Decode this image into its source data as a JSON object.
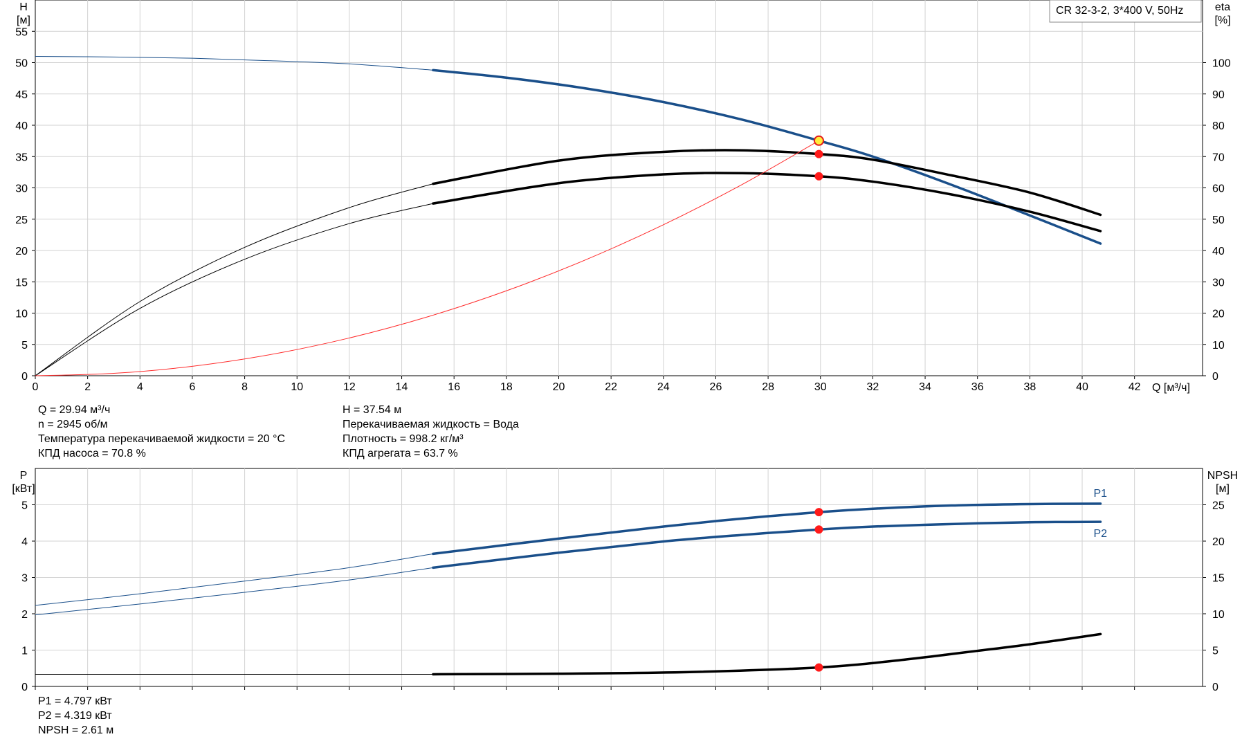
{
  "chart_data": [
    {
      "type": "line",
      "title": "CR 32-3-2, 3*400 V, 50Hz",
      "xlabel": "Q [м³/ч]",
      "ylabel_left": [
        "H",
        "[м]"
      ],
      "ylabel_right": [
        "eta",
        "[%]"
      ],
      "xlim": [
        0,
        44.6
      ],
      "ylim_left": [
        0,
        60
      ],
      "ylim_right": [
        0,
        120
      ],
      "x_ticks": [
        0,
        2,
        4,
        6,
        8,
        10,
        12,
        14,
        16,
        18,
        20,
        22,
        24,
        26,
        28,
        30,
        32,
        34,
        36,
        38,
        40,
        42
      ],
      "y_ticks_left": [
        0,
        5,
        10,
        15,
        20,
        25,
        30,
        35,
        40,
        45,
        50,
        55
      ],
      "y_ticks_right": [
        0,
        10,
        20,
        30,
        40,
        50,
        60,
        70,
        80,
        90,
        100
      ],
      "grid": true,
      "operating_q": 29.94,
      "series": [
        {
          "axis": "left",
          "color": "#1a4f8a",
          "x": [
            0,
            3,
            6,
            9,
            12,
            15.2,
            18,
            21,
            24,
            27,
            29.94,
            32,
            35,
            38,
            40.7
          ],
          "y": [
            51.0,
            50.9,
            50.7,
            50.3,
            49.8,
            48.8,
            47.6,
            45.9,
            43.7,
            40.9,
            37.54,
            35.0,
            30.5,
            25.6,
            21.1
          ],
          "highlight_from": 15.2
        },
        {
          "axis": "right",
          "color": "#000000",
          "x": [
            0,
            4,
            8,
            12,
            15.2,
            20,
            24,
            27,
            29.94,
            32,
            35,
            38,
            40.7
          ],
          "y": [
            0,
            23.7,
            41.0,
            53.7,
            61.3,
            68.7,
            71.5,
            72.0,
            70.8,
            69.0,
            64.0,
            58.5,
            51.4
          ],
          "highlight_from": 15.2
        },
        {
          "axis": "right",
          "color": "#000000",
          "x": [
            0,
            4,
            8,
            12,
            15.2,
            20,
            24,
            27,
            29.94,
            32,
            35,
            38,
            40.7
          ],
          "y": [
            0,
            21.5,
            37.2,
            48.6,
            55.0,
            61.5,
            64.3,
            64.7,
            63.7,
            62.0,
            57.9,
            52.4,
            46.2
          ],
          "highlight_from": 15.2
        },
        {
          "axis": "left",
          "color": "#ff2a2a",
          "x": [
            0,
            3,
            6,
            9,
            12,
            15,
            18,
            21,
            24,
            27,
            29.94
          ],
          "y": [
            0,
            0.38,
            1.51,
            3.39,
            6.03,
            9.42,
            13.56,
            18.46,
            24.11,
            30.52,
            37.54
          ],
          "thin": true
        }
      ],
      "points": [
        {
          "axis": "left",
          "x": 29.94,
          "y": 37.54,
          "style": "yellow"
        },
        {
          "axis": "right",
          "x": 29.94,
          "y": 70.8,
          "style": "red"
        },
        {
          "axis": "right",
          "x": 29.94,
          "y": 63.7,
          "style": "red"
        }
      ]
    },
    {
      "type": "line",
      "title": "",
      "xlabel": "",
      "ylabel_left": [
        "P",
        "[кВт]"
      ],
      "ylabel_right": [
        "NPSH",
        "[м]"
      ],
      "xlim": [
        0,
        44.6
      ],
      "ylim_left": [
        0,
        6
      ],
      "ylim_right": [
        0,
        30
      ],
      "x_ticks": [
        0,
        2,
        4,
        6,
        8,
        10,
        12,
        14,
        16,
        18,
        20,
        22,
        24,
        26,
        28,
        30,
        32,
        34,
        36,
        38,
        40,
        42
      ],
      "y_ticks_left": [
        0,
        1,
        2,
        3,
        4,
        5
      ],
      "y_ticks_right": [
        0,
        5,
        10,
        15,
        20,
        25
      ],
      "grid": true,
      "series": [
        {
          "name": "P1",
          "axis": "left",
          "color": "#1a4f8a",
          "x": [
            0,
            4,
            8,
            12,
            15.2,
            20,
            24,
            27,
            29.94,
            32,
            35,
            38,
            40.7
          ],
          "y": [
            2.23,
            2.55,
            2.9,
            3.27,
            3.65,
            4.07,
            4.4,
            4.62,
            4.797,
            4.89,
            4.98,
            5.02,
            5.03
          ],
          "highlight_from": 15.2
        },
        {
          "name": "P2",
          "axis": "left",
          "color": "#1a4f8a",
          "x": [
            0,
            4,
            8,
            12,
            15.2,
            20,
            24,
            27,
            29.94,
            32,
            35,
            38,
            40.7
          ],
          "y": [
            1.97,
            2.27,
            2.59,
            2.93,
            3.27,
            3.68,
            3.99,
            4.17,
            4.319,
            4.4,
            4.47,
            4.52,
            4.53
          ],
          "highlight_from": 15.2
        },
        {
          "name": "NPSH",
          "axis": "right",
          "color": "#000000",
          "x": [
            0,
            10,
            15.2,
            20,
            25,
            29.94,
            33,
            36,
            38,
            40.7
          ],
          "y": [
            1.67,
            1.67,
            1.67,
            1.75,
            1.98,
            2.61,
            3.6,
            4.9,
            5.8,
            7.2
          ],
          "highlight_from": 15.2
        }
      ],
      "points": [
        {
          "axis": "left",
          "x": 29.94,
          "y": 4.797,
          "style": "red"
        },
        {
          "axis": "left",
          "x": 29.94,
          "y": 4.319,
          "style": "red"
        },
        {
          "axis": "right",
          "x": 29.94,
          "y": 2.61,
          "style": "red"
        }
      ]
    }
  ],
  "info": {
    "left": [
      "Q = 29.94 м³/ч",
      "n = 2945 об/м",
      "Температура перекачиваемой жидкости = 20 °C",
      "КПД насоса = 70.8 %"
    ],
    "right": [
      "H = 37.54 м",
      "Перекачиваемая жидкость = Вода",
      "Плотность = 998.2 кг/м³",
      "КПД агрегата = 63.7 %"
    ],
    "bottom": [
      "P1 = 4.797 кВт",
      "P2 = 4.319 кВт",
      "NPSH = 2.61 м"
    ]
  }
}
